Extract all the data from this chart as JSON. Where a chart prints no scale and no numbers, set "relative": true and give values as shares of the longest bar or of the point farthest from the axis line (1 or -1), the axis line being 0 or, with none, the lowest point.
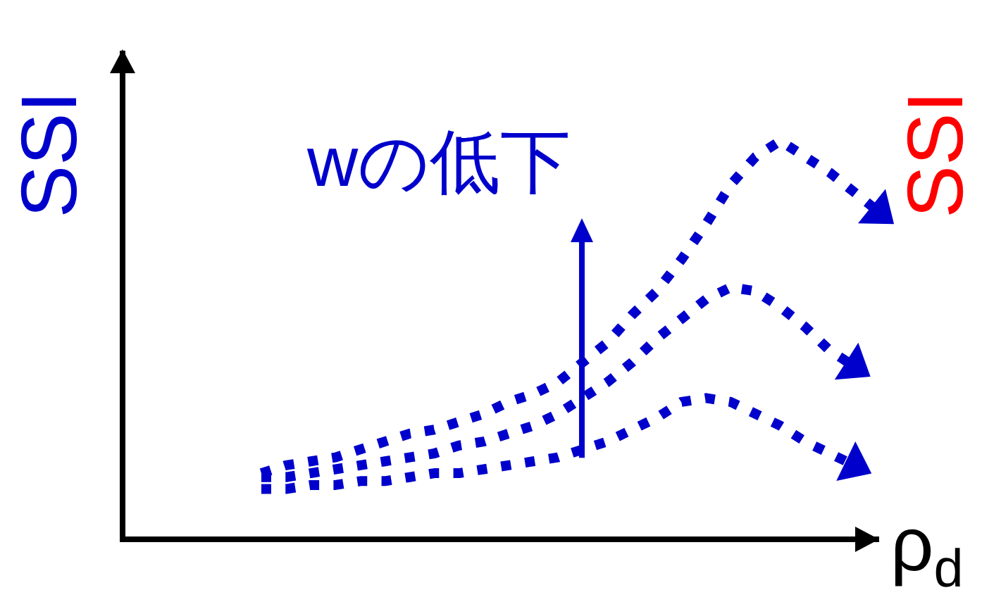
{
  "chart_data": {
    "type": "line",
    "relative": true,
    "tick_labels": false,
    "line_style": "dotted",
    "xlabel": "ρ$_{d}$",
    "ylabel": "SSI",
    "y2label": "SSI",
    "annotations": [
      "wの低下"
    ],
    "categories": [
      null,
      null,
      null,
      null,
      null,
      null,
      null,
      null,
      null,
      null,
      null,
      null,
      null,
      null,
      null,
      null,
      null,
      null,
      null,
      null,
      null,
      null,
      null,
      null,
      null,
      null,
      null,
      null,
      null,
      null,
      null
    ],
    "series": [
      {
        "color": "#0000cc",
        "values": [
          null,
          null,
          null,
          null,
          null,
          0.16,
          0.18,
          0.19,
          0.2,
          0.22,
          0.24,
          0.26,
          0.27,
          0.29,
          0.31,
          0.34,
          0.36,
          0.39,
          0.44,
          0.49,
          0.56,
          0.62,
          0.7,
          0.79,
          0.89,
          0.96,
          1,
          0.96,
          0.92,
          0.87,
          0.82
        ]
      },
      {
        "color": "#0000cc",
        "values": [
          null,
          null,
          null,
          null,
          null,
          0.15,
          0.15,
          0.16,
          0.17,
          0.18,
          0.19,
          0.2,
          0.21,
          0.23,
          0.24,
          0.26,
          0.28,
          0.31,
          0.35,
          0.39,
          0.44,
          0.5,
          0.55,
          0.6,
          0.63,
          0.62,
          0.58,
          0.53,
          0.47,
          0.43,
          null
        ]
      },
      {
        "color": "#0000cc",
        "values": [
          null,
          null,
          null,
          null,
          null,
          0.12,
          0.12,
          0.13,
          0.13,
          0.14,
          0.14,
          0.15,
          0.16,
          0.16,
          0.17,
          0.18,
          0.19,
          0.2,
          0.22,
          0.24,
          0.27,
          0.3,
          0.34,
          0.35,
          0.34,
          0.31,
          0.28,
          0.24,
          0.21,
          0.18,
          null
        ]
      }
    ]
  }
}
